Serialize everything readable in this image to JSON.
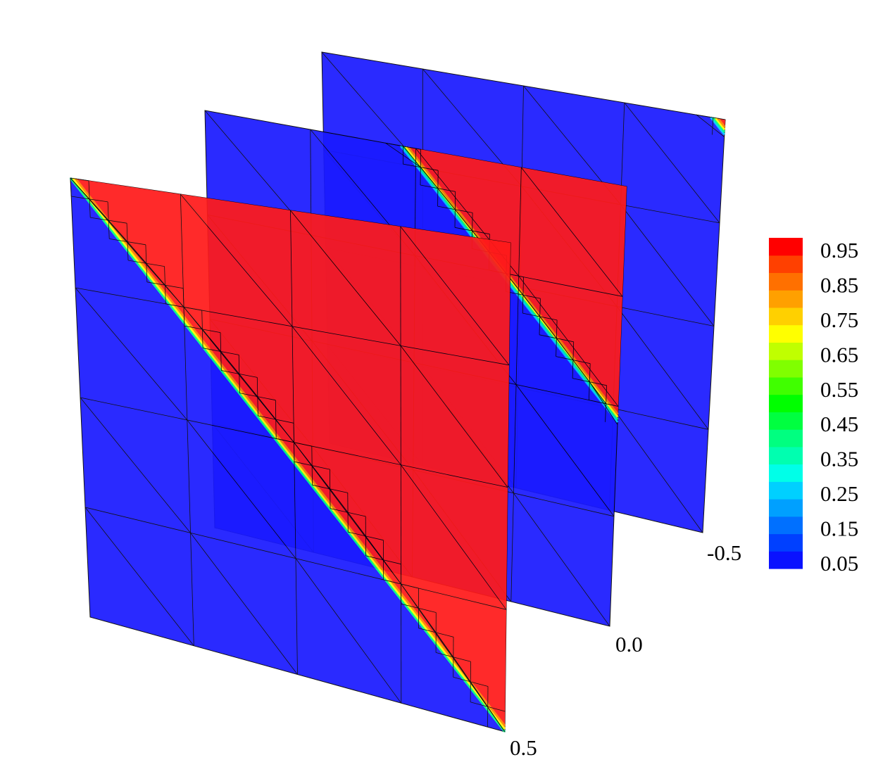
{
  "chart_data": {
    "type": "heatmap",
    "title": "",
    "slice_labels": [
      "-0.5",
      "0.0",
      "0.5"
    ],
    "slices": [
      {
        "position": "-0.5",
        "interface_offset": 0.97
      },
      {
        "position": "0.0",
        "interface_offset": 0.47
      },
      {
        "position": "0.5",
        "interface_offset": 0.0
      }
    ],
    "colorbar": {
      "range": [
        0.0,
        0.95
      ],
      "tick_labels": [
        "0.95",
        "0.85",
        "0.75",
        "0.65",
        "0.55",
        "0.45",
        "0.35",
        "0.25",
        "0.15",
        "0.05"
      ],
      "band_colors": [
        "#0a12ff",
        "#0040ff",
        "#0070ff",
        "#00a0ff",
        "#00d0ff",
        "#00ffe8",
        "#00ffb0",
        "#00ff80",
        "#00ff40",
        "#00ff00",
        "#40ff00",
        "#80ff00",
        "#c0ff00",
        "#ffff00",
        "#ffd000",
        "#ffa000",
        "#ff7000",
        "#ff4000",
        "#ff0000"
      ]
    },
    "colors": {
      "low": "#1a1aff",
      "high": "#ff1a1a",
      "mesh": "#000000"
    }
  }
}
